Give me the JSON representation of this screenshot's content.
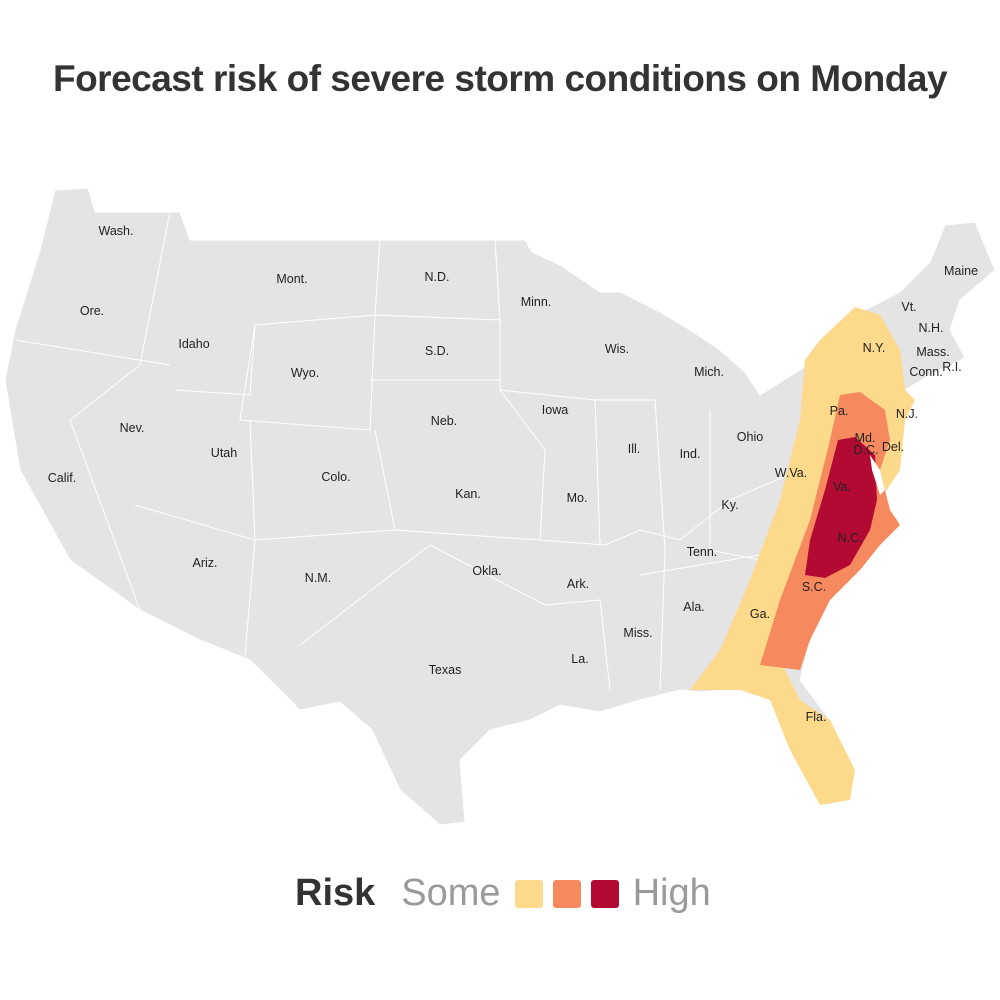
{
  "title": "Forecast risk of severe storm conditions on Monday",
  "colors": {
    "land": "#e4e4e4",
    "some": "#fdd98b",
    "moderate": "#f68a5e",
    "high": "#b30a33"
  },
  "states": [
    {
      "name": "Wash."
    },
    {
      "name": "Ore."
    },
    {
      "name": "Calif."
    },
    {
      "name": "Idaho"
    },
    {
      "name": "Nev."
    },
    {
      "name": "Mont."
    },
    {
      "name": "Wyo."
    },
    {
      "name": "Utah"
    },
    {
      "name": "Ariz."
    },
    {
      "name": "Colo."
    },
    {
      "name": "N.M."
    },
    {
      "name": "N.D."
    },
    {
      "name": "S.D."
    },
    {
      "name": "Neb."
    },
    {
      "name": "Kan."
    },
    {
      "name": "Okla."
    },
    {
      "name": "Texas"
    },
    {
      "name": "Minn."
    },
    {
      "name": "Iowa"
    },
    {
      "name": "Mo."
    },
    {
      "name": "Ark."
    },
    {
      "name": "La."
    },
    {
      "name": "Wis."
    },
    {
      "name": "Ill."
    },
    {
      "name": "Mich."
    },
    {
      "name": "Ind."
    },
    {
      "name": "Ohio"
    },
    {
      "name": "Ky."
    },
    {
      "name": "Tenn."
    },
    {
      "name": "Miss."
    },
    {
      "name": "Ala."
    },
    {
      "name": "Ga."
    },
    {
      "name": "Fla."
    },
    {
      "name": "S.C."
    },
    {
      "name": "N.C."
    },
    {
      "name": "Va."
    },
    {
      "name": "W.Va."
    },
    {
      "name": "Pa."
    },
    {
      "name": "N.Y."
    },
    {
      "name": "Md."
    },
    {
      "name": "D.C."
    },
    {
      "name": "Del."
    },
    {
      "name": "N.J."
    },
    {
      "name": "Conn."
    },
    {
      "name": "R.I."
    },
    {
      "name": "Mass."
    },
    {
      "name": "Vt."
    },
    {
      "name": "N.H."
    },
    {
      "name": "Maine"
    }
  ],
  "legend": {
    "title": "Risk",
    "low": "Some",
    "high": "High"
  }
}
